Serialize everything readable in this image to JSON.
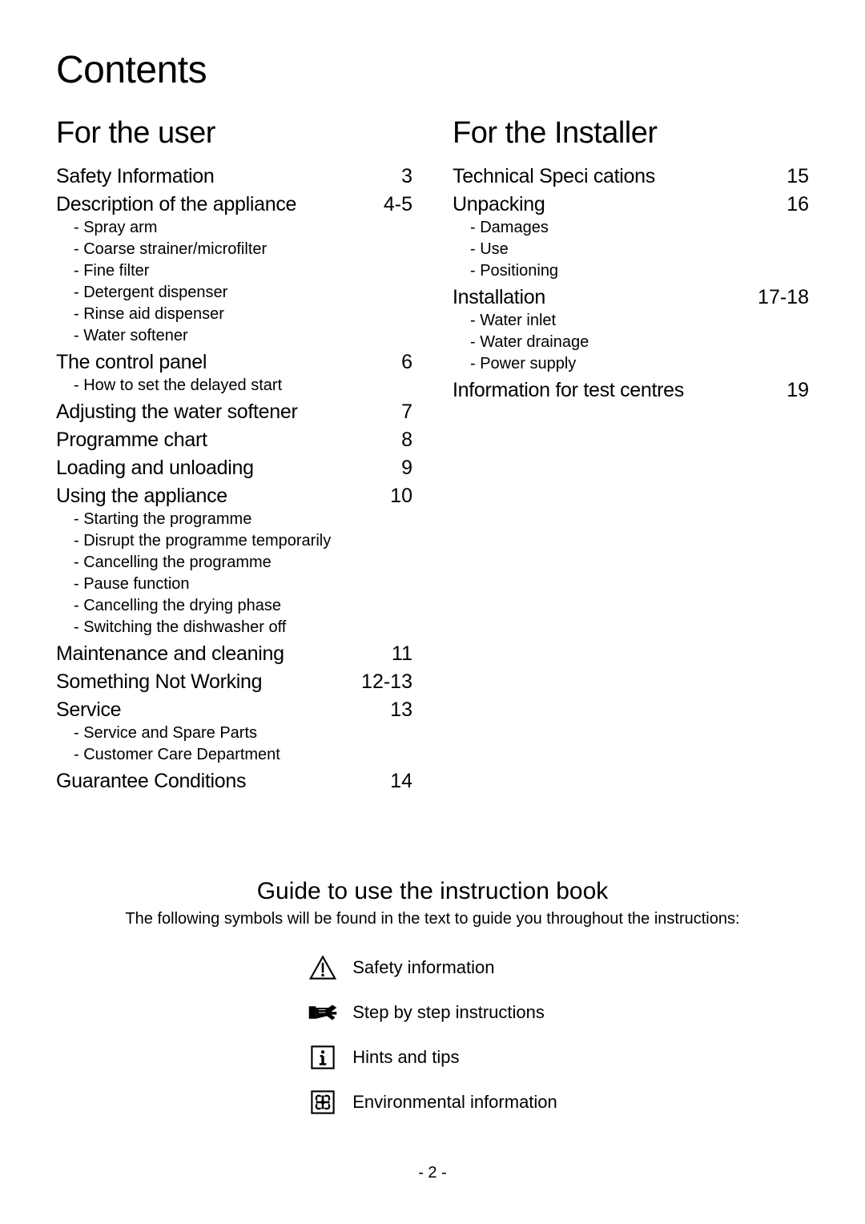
{
  "title": "Contents",
  "columns": {
    "user": {
      "heading": "For the user",
      "entries": [
        {
          "label": "Safety Information",
          "page": "3",
          "subs": []
        },
        {
          "label": "Description of the appliance",
          "page": "4-5",
          "subs": [
            "- Spray arm",
            "- Coarse strainer/microfilter",
            "- Fine filter",
            "- Detergent dispenser",
            "- Rinse aid dispenser",
            "- Water softener"
          ]
        },
        {
          "label": "The control panel",
          "page": "6",
          "subs": [
            "- How to set the delayed start"
          ]
        },
        {
          "label": "Adjusting the water softener",
          "page": "7",
          "subs": []
        },
        {
          "label": "Programme chart",
          "page": "8",
          "subs": []
        },
        {
          "label": "Loading and unloading",
          "page": "9",
          "subs": []
        },
        {
          "label": "Using the appliance",
          "page": "10",
          "subs": [
            "- Starting the programme",
            "- Disrupt the programme temporarily",
            "- Cancelling the programme",
            "- Pause function",
            "- Cancelling the drying phase",
            "- Switching the dishwasher off"
          ]
        },
        {
          "label": "Maintenance and cleaning",
          "page": "11",
          "subs": []
        },
        {
          "label": "Something Not Working",
          "page": "12-13",
          "subs": []
        },
        {
          "label": "Service",
          "page": "13",
          "subs": [
            "- Service and Spare Parts",
            "- Customer Care Department"
          ]
        },
        {
          "label": "Guarantee Conditions",
          "page": "14",
          "subs": []
        }
      ]
    },
    "installer": {
      "heading": "For the Installer",
      "entries": [
        {
          "label": "Technical Speci cations",
          "page": "15",
          "subs": []
        },
        {
          "label": "Unpacking",
          "page": "16",
          "subs": [
            "- Damages",
            "- Use",
            "- Positioning"
          ]
        },
        {
          "label": "Installation",
          "page": "17-18",
          "subs": [
            "- Water inlet",
            "- Water drainage",
            "- Power supply"
          ]
        },
        {
          "label": "Information for test centres",
          "page": "19",
          "subs": []
        }
      ]
    }
  },
  "guide": {
    "title": "Guide to use the instruction book",
    "subtitle": "The following symbols will be found in the text to guide you throughout the instructions:",
    "items": [
      {
        "icon": "warning",
        "text": "Safety information"
      },
      {
        "icon": "hand",
        "text": "Step by step instructions"
      },
      {
        "icon": "info",
        "text": "Hints and tips"
      },
      {
        "icon": "env",
        "text": "Environmental information"
      }
    ]
  },
  "footer": "- 2 -",
  "styling": {
    "page_bg": "#ffffff",
    "text_color": "#000000",
    "title_fontsize": 48,
    "section_heading_fontsize": 38,
    "toc_main_fontsize": 25,
    "toc_sub_fontsize": 20,
    "guide_title_fontsize": 30,
    "legend_text_fontsize": 22,
    "icon_stroke": "#000000",
    "icon_size": 34
  }
}
